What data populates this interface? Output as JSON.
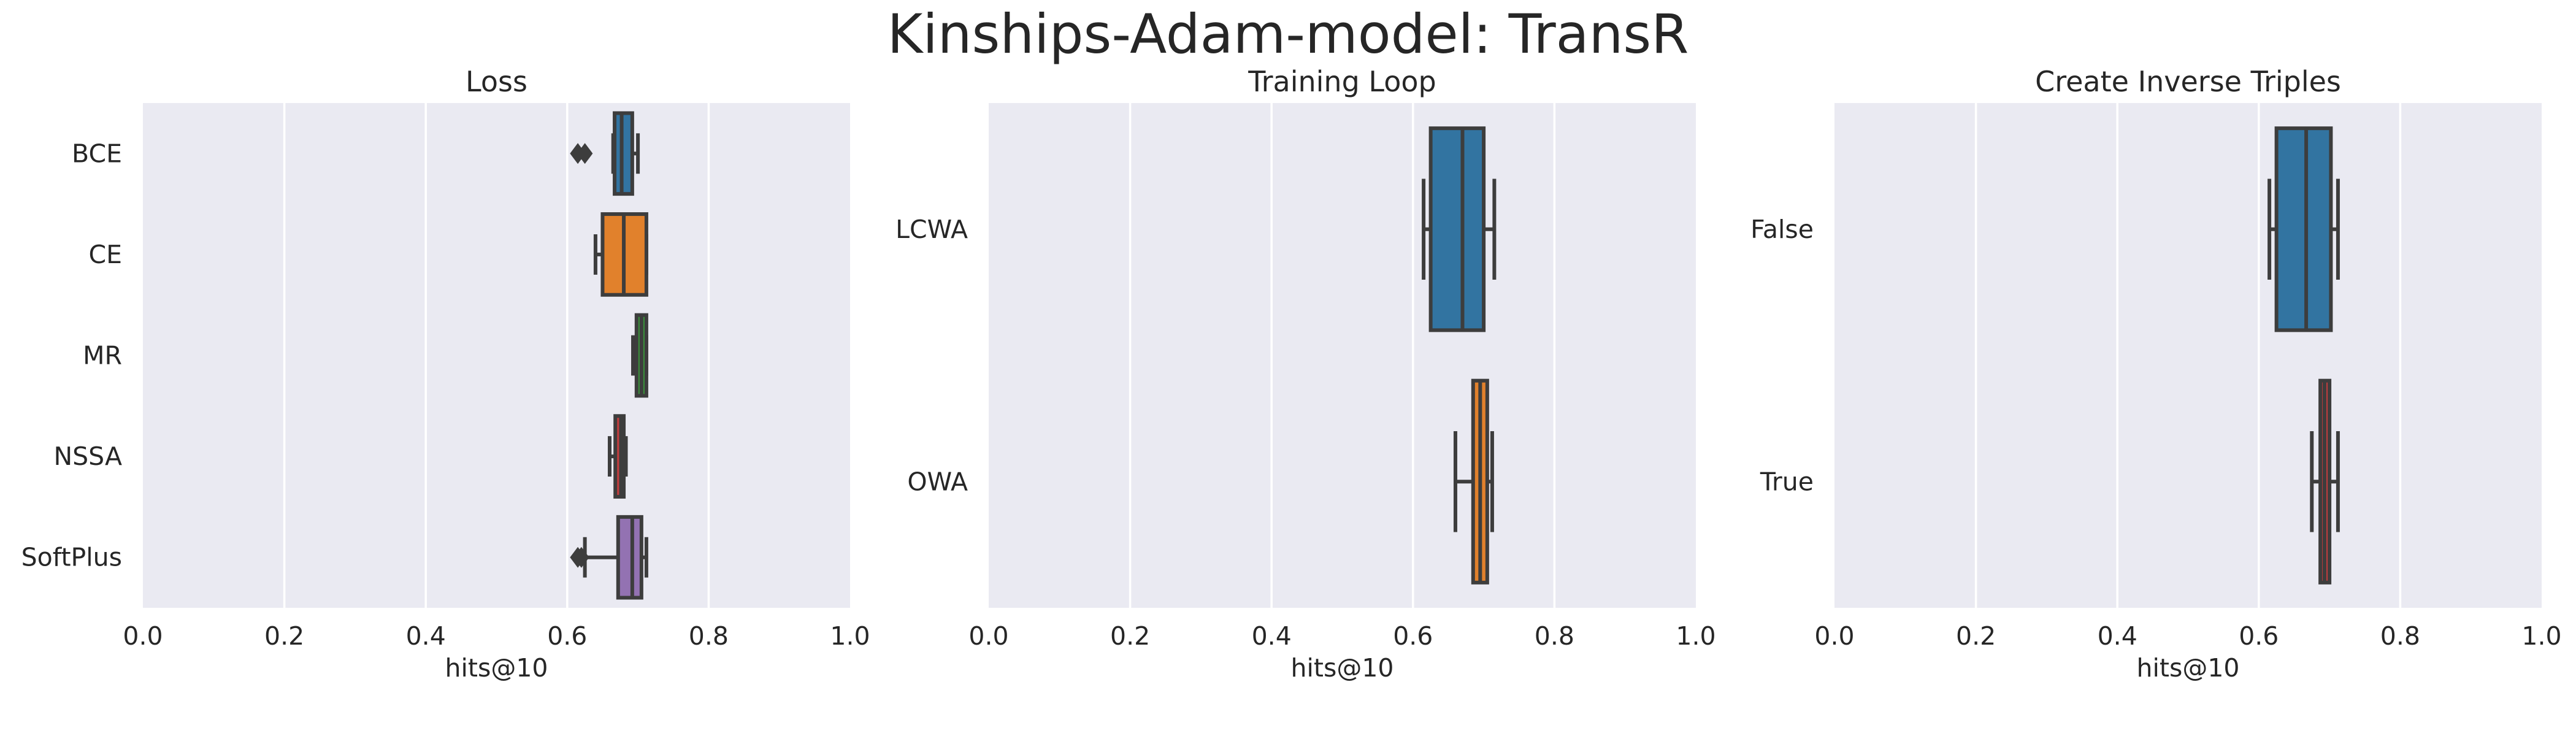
{
  "figure": {
    "title": "Kinships-Adam-model: TransR"
  },
  "chart_data": [
    {
      "type": "box",
      "title": "Loss",
      "xlabel": "hits@10",
      "xlim": [
        0.0,
        1.0
      ],
      "xticks": [
        "0.0",
        "0.2",
        "0.4",
        "0.6",
        "0.8",
        "1.0"
      ],
      "grid": true,
      "orientation": "horizontal",
      "categories": [
        "BCE",
        "CE",
        "MR",
        "NSSA",
        "SoftPlus"
      ],
      "boxes": [
        {
          "category": "BCE",
          "color": "#3274a1",
          "whisker_low": 0.665,
          "q1": 0.667,
          "median": 0.677,
          "q3": 0.692,
          "whisker_high": 0.7,
          "outliers": [
            0.615,
            0.625
          ]
        },
        {
          "category": "CE",
          "color": "#e1812c",
          "whisker_low": 0.64,
          "q1": 0.65,
          "median": 0.68,
          "q3": 0.712,
          "whisker_high": 0.712,
          "outliers": []
        },
        {
          "category": "MR",
          "color": "#3a923a",
          "whisker_low": 0.693,
          "q1": 0.698,
          "median": 0.705,
          "q3": 0.712,
          "whisker_high": 0.712,
          "outliers": []
        },
        {
          "category": "NSSA",
          "color": "#c03d3e",
          "whisker_low": 0.66,
          "q1": 0.668,
          "median": 0.676,
          "q3": 0.68,
          "whisker_high": 0.683,
          "outliers": []
        },
        {
          "category": "SoftPlus",
          "color": "#9372b2",
          "whisker_low": 0.625,
          "q1": 0.672,
          "median": 0.692,
          "q3": 0.705,
          "whisker_high": 0.712,
          "outliers": [
            0.615,
            0.62
          ]
        }
      ]
    },
    {
      "type": "box",
      "title": "Training Loop",
      "xlabel": "hits@10",
      "xlim": [
        0.0,
        1.0
      ],
      "xticks": [
        "0.0",
        "0.2",
        "0.4",
        "0.6",
        "0.8",
        "1.0"
      ],
      "grid": true,
      "orientation": "horizontal",
      "categories": [
        "LCWA",
        "OWA"
      ],
      "boxes": [
        {
          "category": "LCWA",
          "color": "#3274a1",
          "whisker_low": 0.615,
          "q1": 0.625,
          "median": 0.67,
          "q3": 0.7,
          "whisker_high": 0.715,
          "outliers": []
        },
        {
          "category": "OWA",
          "color": "#e1812c",
          "whisker_low": 0.66,
          "q1": 0.685,
          "median": 0.695,
          "q3": 0.705,
          "whisker_high": 0.712,
          "outliers": []
        }
      ]
    },
    {
      "type": "box",
      "title": "Create Inverse Triples",
      "xlabel": "hits@10",
      "xlim": [
        0.0,
        1.0
      ],
      "xticks": [
        "0.0",
        "0.2",
        "0.4",
        "0.6",
        "0.8",
        "1.0"
      ],
      "grid": true,
      "orientation": "horizontal",
      "categories": [
        "False",
        "True"
      ],
      "boxes": [
        {
          "category": "False",
          "color": "#3274a1",
          "whisker_low": 0.615,
          "q1": 0.625,
          "median": 0.667,
          "q3": 0.702,
          "whisker_high": 0.712,
          "outliers": []
        },
        {
          "category": "True",
          "color": "#c03d3e",
          "whisker_low": 0.675,
          "q1": 0.687,
          "median": 0.693,
          "q3": 0.7,
          "whisker_high": 0.712,
          "outliers": []
        }
      ]
    }
  ]
}
